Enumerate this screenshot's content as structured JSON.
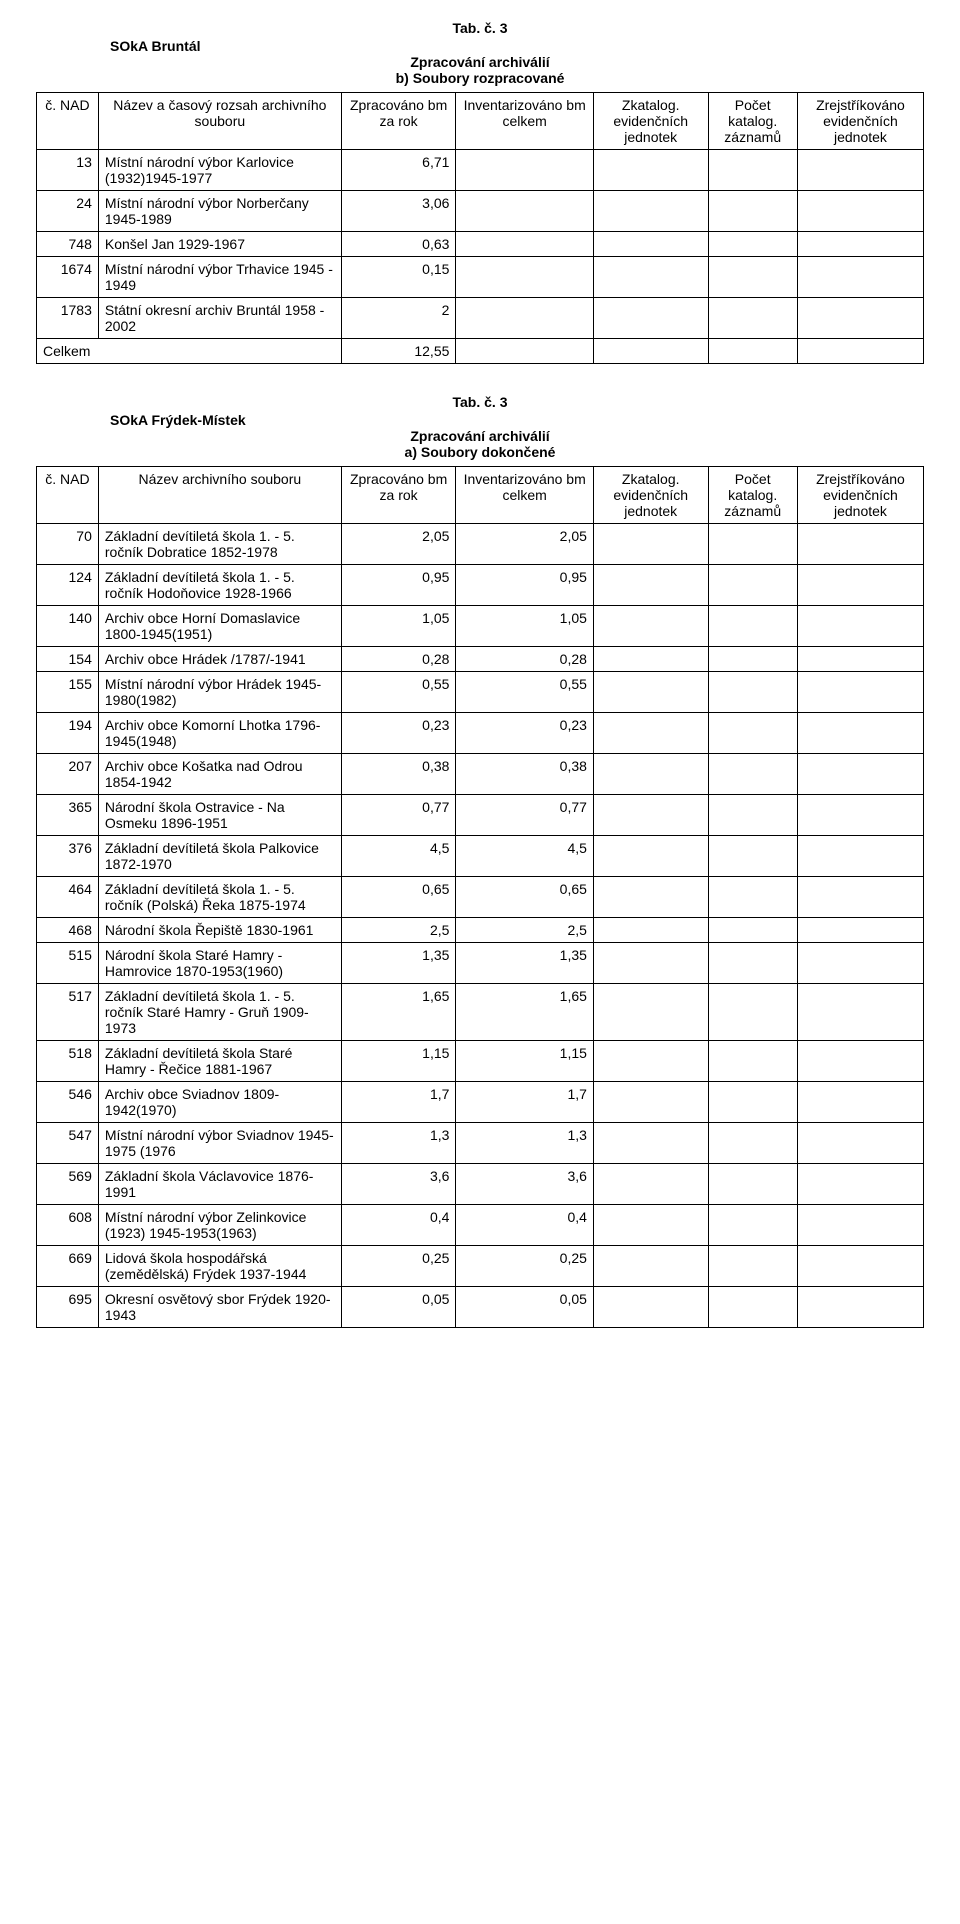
{
  "table1": {
    "tab_label": "Tab. č. 3",
    "archive_name": "SOkA Bruntál",
    "section_title": "Zpracování archiválií",
    "section_sub": "b) Soubory rozpracované",
    "headers": {
      "idx": "č. NAD",
      "name": "Název a časový rozsah archivního souboru",
      "proc": "Zpracováno bm za rok",
      "inv": "Inventarizováno bm celkem",
      "zkat": "Zkatalog. evidenčních jednotek",
      "pocet": "Počet katalog. záznamů",
      "zrej": "Zrejstříkováno evidenčních jednotek"
    },
    "rows": [
      {
        "idx": "13",
        "name": "Místní národní výbor Karlovice (1932)1945-1977",
        "proc": "6,71",
        "inv": "",
        "zkat": "",
        "pocet": "",
        "zrej": ""
      },
      {
        "idx": "24",
        "name": "Místní národní výbor Norberčany 1945-1989",
        "proc": "3,06",
        "inv": "",
        "zkat": "",
        "pocet": "",
        "zrej": ""
      },
      {
        "idx": "748",
        "name": "Konšel Jan 1929-1967",
        "proc": "0,63",
        "inv": "",
        "zkat": "",
        "pocet": "",
        "zrej": ""
      },
      {
        "idx": "1674",
        "name": "Místní národní výbor Trhavice 1945 - 1949",
        "proc": "0,15",
        "inv": "",
        "zkat": "",
        "pocet": "",
        "zrej": ""
      },
      {
        "idx": "1783",
        "name": "Státní okresní archiv Bruntál 1958 - 2002",
        "proc": "2",
        "inv": "",
        "zkat": "",
        "pocet": "",
        "zrej": ""
      }
    ],
    "total_label": "Celkem",
    "total_proc": "12,55"
  },
  "table2": {
    "tab_label": "Tab. č. 3",
    "archive_name": "SOkA Frýdek-Místek",
    "section_title": "Zpracování archiválií",
    "section_sub": "a) Soubory dokončené",
    "headers": {
      "idx": "č. NAD",
      "name": "Název archivního souboru",
      "proc": "Zpracováno bm za rok",
      "inv": "Inventarizováno bm celkem",
      "zkat": "Zkatalog. evidenčních jednotek",
      "pocet": "Počet katalog. záznamů",
      "zrej": "Zrejstříkováno evidenčních jednotek"
    },
    "rows": [
      {
        "idx": "70",
        "name": "Základní devítiletá škola 1. - 5. ročník Dobratice 1852-1978",
        "proc": "2,05",
        "inv": "2,05",
        "zkat": "",
        "pocet": "",
        "zrej": ""
      },
      {
        "idx": "124",
        "name": "Základní devítiletá škola 1. - 5. ročník Hodoňovice 1928-1966",
        "proc": "0,95",
        "inv": "0,95",
        "zkat": "",
        "pocet": "",
        "zrej": ""
      },
      {
        "idx": "140",
        "name": "Archiv obce Horní Domaslavice 1800-1945(1951)",
        "proc": "1,05",
        "inv": "1,05",
        "zkat": "",
        "pocet": "",
        "zrej": ""
      },
      {
        "idx": "154",
        "name": "Archiv obce Hrádek /1787/-1941",
        "proc": "0,28",
        "inv": "0,28",
        "zkat": "",
        "pocet": "",
        "zrej": ""
      },
      {
        "idx": "155",
        "name": "Místní národní výbor Hrádek 1945-1980(1982)",
        "proc": "0,55",
        "inv": "0,55",
        "zkat": "",
        "pocet": "",
        "zrej": ""
      },
      {
        "idx": "194",
        "name": "Archiv obce Komorní Lhotka 1796-1945(1948)",
        "proc": "0,23",
        "inv": "0,23",
        "zkat": "",
        "pocet": "",
        "zrej": ""
      },
      {
        "idx": "207",
        "name": "Archiv obce Košatka nad Odrou 1854-1942",
        "proc": "0,38",
        "inv": "0,38",
        "zkat": "",
        "pocet": "",
        "zrej": ""
      },
      {
        "idx": "365",
        "name": "Národní škola Ostravice - Na Osmeku 1896-1951",
        "proc": "0,77",
        "inv": "0,77",
        "zkat": "",
        "pocet": "",
        "zrej": ""
      },
      {
        "idx": "376",
        "name": "Základní devítiletá škola Palkovice 1872-1970",
        "proc": "4,5",
        "inv": "4,5",
        "zkat": "",
        "pocet": "",
        "zrej": ""
      },
      {
        "idx": "464",
        "name": "Základní devítiletá škola 1. - 5. ročník (Polská) Řeka 1875-1974",
        "proc": "0,65",
        "inv": "0,65",
        "zkat": "",
        "pocet": "",
        "zrej": ""
      },
      {
        "idx": "468",
        "name": "Národní škola Řepiště 1830-1961",
        "proc": "2,5",
        "inv": "2,5",
        "zkat": "",
        "pocet": "",
        "zrej": ""
      },
      {
        "idx": "515",
        "name": "Národní škola Staré Hamry - Hamrovice 1870-1953(1960)",
        "proc": "1,35",
        "inv": "1,35",
        "zkat": "",
        "pocet": "",
        "zrej": ""
      },
      {
        "idx": "517",
        "name": "Základní devítiletá škola 1. - 5. ročník Staré Hamry - Gruň 1909-1973",
        "proc": "1,65",
        "inv": "1,65",
        "zkat": "",
        "pocet": "",
        "zrej": ""
      },
      {
        "idx": "518",
        "name": "Základní devítiletá škola Staré Hamry - Řečice 1881-1967",
        "proc": "1,15",
        "inv": "1,15",
        "zkat": "",
        "pocet": "",
        "zrej": ""
      },
      {
        "idx": "546",
        "name": "Archiv obce Sviadnov 1809-1942(1970)",
        "proc": "1,7",
        "inv": "1,7",
        "zkat": "",
        "pocet": "",
        "zrej": ""
      },
      {
        "idx": "547",
        "name": "Místní národní výbor Sviadnov 1945-1975 (1976",
        "proc": "1,3",
        "inv": "1,3",
        "zkat": "",
        "pocet": "",
        "zrej": ""
      },
      {
        "idx": "569",
        "name": "Základní škola Václavovice 1876-1991",
        "proc": "3,6",
        "inv": "3,6",
        "zkat": "",
        "pocet": "",
        "zrej": ""
      },
      {
        "idx": "608",
        "name": "Místní národní výbor Zelinkovice (1923) 1945-1953(1963)",
        "proc": "0,4",
        "inv": "0,4",
        "zkat": "",
        "pocet": "",
        "zrej": ""
      },
      {
        "idx": "669",
        "name": "Lidová škola hospodářská (zemědělská) Frýdek 1937-1944",
        "proc": "0,25",
        "inv": "0,25",
        "zkat": "",
        "pocet": "",
        "zrej": ""
      },
      {
        "idx": "695",
        "name": "Okresní osvětový sbor Frýdek 1920-1943",
        "proc": "0,05",
        "inv": "0,05",
        "zkat": "",
        "pocet": "",
        "zrej": ""
      }
    ]
  }
}
